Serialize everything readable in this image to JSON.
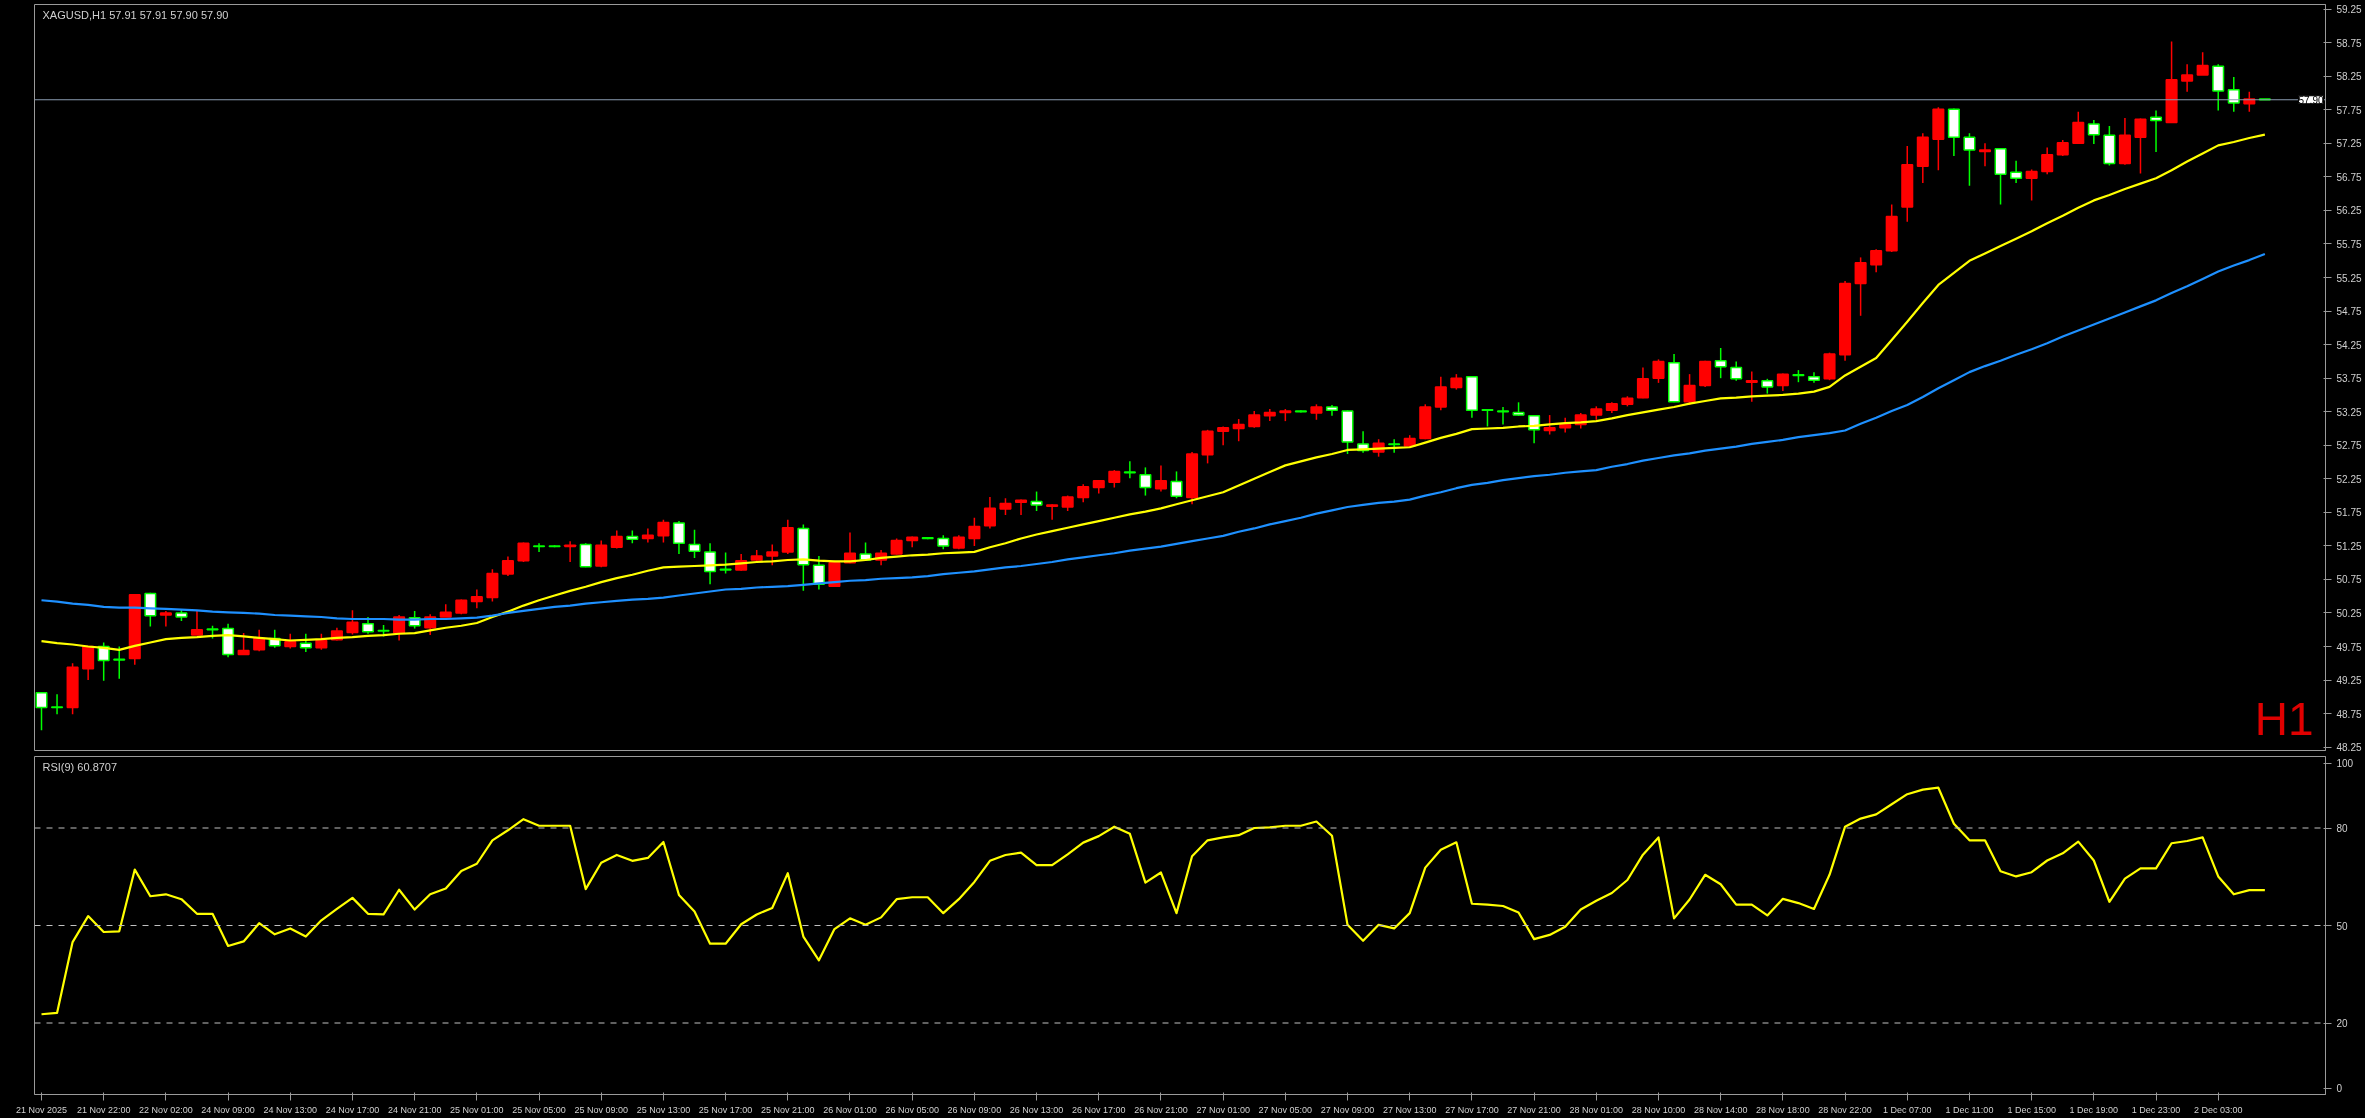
{
  "chart_data": [
    {
      "type": "candlestick",
      "title": "XAGUSD,H1  57.91 57.91 57.90 57.90",
      "categories": [
        null,
        null,
        null,
        null,
        null,
        null,
        null,
        null,
        null,
        null,
        null,
        null,
        null,
        null,
        null,
        null,
        null,
        null,
        null,
        null,
        null,
        null,
        null,
        null,
        null,
        null,
        null,
        null,
        null,
        null,
        null,
        null,
        null,
        null,
        null,
        null,
        null,
        null,
        null,
        null,
        null,
        null,
        null,
        null,
        null,
        null,
        null,
        null,
        null,
        null,
        null,
        null,
        null,
        null,
        null,
        null,
        null,
        null,
        null,
        null,
        null,
        null,
        null,
        null,
        null,
        null,
        null,
        null,
        null,
        null,
        null,
        null,
        null,
        null,
        null,
        null,
        null,
        null,
        null,
        null,
        null,
        null,
        null,
        null,
        null,
        null,
        null,
        null,
        null,
        null,
        null,
        null,
        null,
        null,
        null,
        null,
        null,
        null,
        null,
        null,
        null,
        null,
        null,
        null,
        null,
        null,
        null,
        null,
        null,
        null,
        null,
        null,
        null,
        null,
        null,
        null,
        null,
        null,
        null,
        null,
        null,
        null,
        null,
        null,
        null,
        null,
        null,
        null,
        null,
        null,
        null,
        null,
        null,
        null,
        null,
        null,
        null,
        null,
        null,
        null,
        null,
        null,
        null,
        null
      ],
      "ohlc": [
        [
          49.06,
          49.06,
          48.5,
          48.84
        ],
        [
          48.85,
          49.04,
          48.74,
          48.84
        ],
        [
          48.84,
          49.5,
          48.74,
          49.44
        ],
        [
          49.42,
          49.75,
          49.25,
          49.75
        ],
        [
          49.75,
          49.81,
          49.24,
          49.54
        ],
        [
          49.56,
          49.75,
          49.27,
          49.55
        ],
        [
          49.57,
          50.52,
          49.48,
          50.52
        ],
        [
          50.54,
          50.55,
          50.05,
          50.21
        ],
        [
          50.22,
          50.28,
          50.05,
          50.25
        ],
        [
          50.25,
          50.31,
          50.13,
          50.19
        ],
        [
          49.92,
          50.28,
          49.92,
          50.0
        ],
        [
          50.01,
          50.06,
          49.87,
          50.0
        ],
        [
          50.02,
          50.09,
          49.59,
          49.63
        ],
        [
          49.63,
          49.95,
          49.63,
          49.69
        ],
        [
          49.7,
          50.0,
          49.68,
          49.87
        ],
        [
          49.87,
          50.0,
          49.73,
          49.76
        ],
        [
          49.75,
          49.94,
          49.72,
          49.82
        ],
        [
          49.8,
          49.94,
          49.67,
          49.73
        ],
        [
          49.73,
          49.94,
          49.7,
          49.84
        ],
        [
          49.85,
          50.03,
          49.84,
          49.98
        ],
        [
          49.96,
          50.29,
          49.93,
          50.11
        ],
        [
          50.09,
          50.19,
          49.94,
          49.97
        ],
        [
          49.99,
          50.07,
          49.9,
          49.98
        ],
        [
          49.95,
          50.22,
          49.84,
          50.19
        ],
        [
          50.18,
          50.28,
          50.02,
          50.06
        ],
        [
          50.03,
          50.23,
          49.92,
          50.19
        ],
        [
          50.19,
          50.38,
          50.19,
          50.26
        ],
        [
          50.25,
          50.45,
          50.23,
          50.44
        ],
        [
          50.42,
          50.6,
          50.32,
          50.49
        ],
        [
          50.48,
          50.9,
          50.42,
          50.84
        ],
        [
          50.83,
          51.09,
          50.8,
          51.03
        ],
        [
          51.03,
          51.3,
          51.01,
          51.29
        ],
        [
          51.25,
          51.29,
          51.16,
          51.24
        ],
        [
          51.25,
          51.26,
          51.23,
          51.24
        ],
        [
          51.24,
          51.32,
          51.01,
          51.26
        ],
        [
          51.27,
          51.29,
          50.93,
          50.94
        ],
        [
          50.95,
          51.33,
          50.93,
          51.26
        ],
        [
          51.23,
          51.48,
          51.21,
          51.39
        ],
        [
          51.39,
          51.48,
          51.29,
          51.35
        ],
        [
          51.36,
          51.51,
          51.3,
          51.41
        ],
        [
          51.4,
          51.64,
          51.3,
          51.6
        ],
        [
          51.59,
          51.62,
          51.13,
          51.29
        ],
        [
          51.27,
          51.49,
          51.07,
          51.17
        ],
        [
          51.16,
          51.29,
          50.68,
          50.87
        ],
        [
          50.9,
          51.15,
          50.84,
          50.89
        ],
        [
          50.89,
          51.13,
          50.88,
          51.03
        ],
        [
          51.04,
          51.19,
          51.0,
          51.1
        ],
        [
          51.1,
          51.27,
          50.96,
          51.16
        ],
        [
          51.16,
          51.64,
          51.13,
          51.52
        ],
        [
          51.51,
          51.57,
          50.58,
          50.97
        ],
        [
          50.96,
          51.1,
          50.6,
          50.68
        ],
        [
          50.65,
          51.03,
          50.64,
          51.0
        ],
        [
          51.0,
          51.45,
          50.99,
          51.14
        ],
        [
          51.13,
          51.3,
          51.03,
          51.04
        ],
        [
          51.04,
          51.19,
          50.96,
          51.14
        ],
        [
          51.13,
          51.36,
          51.12,
          51.33
        ],
        [
          51.33,
          51.39,
          51.23,
          51.38
        ],
        [
          51.37,
          51.38,
          51.35,
          51.36
        ],
        [
          51.36,
          51.41,
          51.2,
          51.25
        ],
        [
          51.22,
          51.41,
          51.2,
          51.38
        ],
        [
          51.36,
          51.67,
          51.25,
          51.54
        ],
        [
          51.55,
          51.98,
          51.51,
          51.81
        ],
        [
          51.8,
          51.96,
          51.71,
          51.88
        ],
        [
          51.9,
          51.94,
          51.71,
          51.93
        ],
        [
          51.91,
          52.06,
          51.77,
          51.86
        ],
        [
          51.84,
          51.87,
          51.64,
          51.86
        ],
        [
          51.83,
          52.0,
          51.77,
          51.98
        ],
        [
          51.97,
          52.17,
          51.9,
          52.13
        ],
        [
          52.12,
          52.23,
          52.03,
          52.22
        ],
        [
          52.2,
          52.38,
          52.12,
          52.36
        ],
        [
          52.35,
          52.51,
          52.26,
          52.34
        ],
        [
          52.31,
          52.42,
          52.0,
          52.12
        ],
        [
          52.1,
          52.45,
          52.06,
          52.22
        ],
        [
          52.21,
          52.36,
          51.96,
          51.99
        ],
        [
          51.97,
          52.65,
          51.87,
          52.62
        ],
        [
          52.61,
          52.98,
          52.48,
          52.96
        ],
        [
          52.96,
          53.03,
          52.75,
          53.01
        ],
        [
          53.0,
          53.14,
          52.81,
          53.06
        ],
        [
          53.03,
          53.26,
          53.01,
          53.2
        ],
        [
          53.19,
          53.29,
          53.11,
          53.24
        ],
        [
          53.24,
          53.29,
          53.11,
          53.26
        ],
        [
          53.26,
          53.27,
          53.24,
          53.25
        ],
        [
          53.23,
          53.36,
          53.13,
          53.32
        ],
        [
          53.32,
          53.35,
          53.19,
          53.27
        ],
        [
          53.26,
          53.27,
          52.62,
          52.8
        ],
        [
          52.77,
          52.96,
          52.64,
          52.67
        ],
        [
          52.65,
          52.84,
          52.58,
          52.78
        ],
        [
          52.77,
          52.84,
          52.64,
          52.76
        ],
        [
          52.74,
          52.9,
          52.71,
          52.85
        ],
        [
          52.85,
          53.36,
          52.84,
          53.32
        ],
        [
          53.32,
          53.77,
          53.27,
          53.62
        ],
        [
          53.61,
          53.81,
          53.58,
          53.75
        ],
        [
          53.77,
          53.78,
          53.16,
          53.27
        ],
        [
          53.28,
          53.28,
          53.03,
          53.27
        ],
        [
          53.26,
          53.32,
          53.06,
          53.25
        ],
        [
          53.24,
          53.39,
          53.19,
          53.2
        ],
        [
          53.19,
          53.2,
          52.78,
          52.98
        ],
        [
          52.97,
          53.2,
          52.91,
          53.01
        ],
        [
          53.01,
          53.16,
          52.94,
          53.06
        ],
        [
          53.06,
          53.23,
          53.0,
          53.2
        ],
        [
          53.2,
          53.33,
          53.13,
          53.29
        ],
        [
          53.27,
          53.39,
          53.23,
          53.37
        ],
        [
          53.36,
          53.48,
          53.33,
          53.45
        ],
        [
          53.46,
          53.91,
          53.45,
          53.74
        ],
        [
          53.75,
          54.03,
          53.68,
          54.0
        ],
        [
          53.98,
          54.11,
          53.39,
          53.4
        ],
        [
          53.4,
          53.81,
          53.35,
          53.64
        ],
        [
          53.64,
          54.01,
          53.62,
          54.0
        ],
        [
          54.01,
          54.2,
          53.75,
          53.92
        ],
        [
          53.91,
          54.0,
          53.71,
          53.74
        ],
        [
          53.69,
          53.85,
          53.4,
          53.71
        ],
        [
          53.71,
          53.74,
          53.52,
          53.62
        ],
        [
          53.64,
          53.82,
          53.56,
          53.81
        ],
        [
          53.8,
          53.87,
          53.69,
          53.79
        ],
        [
          53.77,
          53.84,
          53.68,
          53.72
        ],
        [
          53.74,
          54.13,
          53.72,
          54.11
        ],
        [
          54.1,
          55.2,
          54.01,
          55.16
        ],
        [
          55.16,
          55.55,
          54.68,
          55.47
        ],
        [
          55.44,
          55.67,
          55.33,
          55.65
        ],
        [
          55.65,
          56.34,
          55.63,
          56.16
        ],
        [
          56.3,
          57.21,
          56.08,
          56.93
        ],
        [
          56.91,
          57.4,
          56.66,
          57.34
        ],
        [
          57.31,
          57.79,
          56.85,
          57.76
        ],
        [
          57.76,
          57.77,
          57.06,
          57.34
        ],
        [
          57.34,
          57.4,
          56.62,
          57.15
        ],
        [
          57.13,
          57.25,
          56.91,
          57.15
        ],
        [
          57.17,
          57.18,
          56.34,
          56.79
        ],
        [
          56.82,
          56.99,
          56.66,
          56.73
        ],
        [
          56.73,
          56.86,
          56.4,
          56.83
        ],
        [
          56.83,
          57.19,
          56.79,
          57.08
        ],
        [
          57.08,
          57.3,
          57.06,
          57.26
        ],
        [
          57.25,
          57.72,
          57.24,
          57.56
        ],
        [
          57.54,
          57.6,
          57.24,
          57.38
        ],
        [
          57.37,
          57.51,
          56.92,
          56.95
        ],
        [
          56.95,
          57.63,
          56.93,
          57.37
        ],
        [
          57.34,
          57.62,
          56.8,
          57.61
        ],
        [
          57.64,
          57.74,
          57.12,
          57.59
        ],
        [
          57.56,
          58.77,
          57.56,
          58.2
        ],
        [
          58.18,
          58.43,
          58.02,
          58.27
        ],
        [
          58.27,
          58.61,
          58.27,
          58.41
        ],
        [
          58.4,
          58.43,
          57.74,
          58.03
        ],
        [
          58.05,
          58.24,
          57.72,
          57.85
        ],
        [
          57.84,
          58.02,
          57.72,
          57.91
        ],
        [
          57.91,
          57.91,
          57.9,
          57.9
        ]
      ],
      "colors": [
        "#ffffff",
        "#ffffff",
        "#ff0000",
        "#ff0000",
        "#ffffff",
        "#ffffff",
        "#ff0000",
        "#ffffff",
        "#ff0000",
        "#ffffff",
        "#ff0000",
        "#ffffff",
        "#ffffff",
        "#ff0000",
        "#ff0000",
        "#ffffff",
        "#ff0000",
        "#ffffff",
        "#ff0000",
        "#ff0000",
        "#ff0000",
        "#ffffff",
        "#ffffff",
        "#ff0000",
        "#ffffff",
        "#ff0000",
        "#ff0000",
        "#ff0000",
        "#ff0000",
        "#ff0000",
        "#ff0000",
        "#ff0000",
        "#ffffff",
        "#ffffff",
        "#ff0000",
        "#ffffff",
        "#ff0000",
        "#ff0000",
        "#ffffff",
        "#ff0000",
        "#ff0000",
        "#ffffff",
        "#ffffff",
        "#ffffff",
        "#ffffff",
        "#ff0000",
        "#ff0000",
        "#ff0000",
        "#ff0000",
        "#ffffff",
        "#ffffff",
        "#ff0000",
        "#ff0000",
        "#ffffff",
        "#ff0000",
        "#ff0000",
        "#ff0000",
        "#ffffff",
        "#ffffff",
        "#ff0000",
        "#ff0000",
        "#ff0000",
        "#ff0000",
        "#ff0000",
        "#ffffff",
        "#ff0000",
        "#ff0000",
        "#ff0000",
        "#ff0000",
        "#ff0000",
        "#ffffff",
        "#ffffff",
        "#ff0000",
        "#ffffff",
        "#ff0000",
        "#ff0000",
        "#ff0000",
        "#ff0000",
        "#ff0000",
        "#ff0000",
        "#ff0000",
        "#ffffff",
        "#ff0000",
        "#ffffff",
        "#ffffff",
        "#ffffff",
        "#ff0000",
        "#ffffff",
        "#ff0000",
        "#ff0000",
        "#ff0000",
        "#ff0000",
        "#ffffff",
        "#ffffff",
        "#ffffff",
        "#ffffff",
        "#ffffff",
        "#ff0000",
        "#ff0000",
        "#ff0000",
        "#ff0000",
        "#ff0000",
        "#ff0000",
        "#ff0000",
        "#ff0000",
        "#ffffff",
        "#ff0000",
        "#ff0000",
        "#ffffff",
        "#ffffff",
        "#ff0000",
        "#ffffff",
        "#ff0000",
        "#ffffff",
        "#ffffff",
        "#ff0000",
        "#ff0000",
        "#ff0000",
        "#ff0000",
        "#ff0000",
        "#ff0000",
        "#ff0000",
        "#ff0000",
        "#ffffff",
        "#ffffff",
        "#ff0000",
        "#ffffff",
        "#ffffff",
        "#ff0000",
        "#ff0000",
        "#ff0000",
        "#ff0000",
        "#ffffff",
        "#ffffff",
        "#ff0000",
        "#ff0000",
        "#ffffff",
        "#ff0000",
        "#ff0000",
        "#ff0000",
        "#ffffff",
        "#ffffff",
        "#ff0000",
        "#ffffff"
      ],
      "series": [
        {
          "type": "line",
          "color": "#ffff00",
          "values": [
            49.83,
            49.8,
            49.78,
            49.75,
            49.73,
            49.7,
            49.76,
            49.81,
            49.86,
            49.88,
            49.89,
            49.91,
            49.92,
            49.9,
            49.88,
            49.86,
            49.84,
            49.85,
            49.86,
            49.88,
            49.89,
            49.91,
            49.92,
            49.94,
            49.95,
            49.99,
            50.03,
            50.06,
            50.1,
            50.19,
            50.27,
            50.36,
            50.44,
            50.51,
            50.58,
            50.64,
            50.71,
            50.77,
            50.82,
            50.88,
            50.93,
            50.94,
            50.95,
            50.96,
            50.97,
            50.99,
            51.01,
            51.02,
            51.04,
            51.05,
            51.03,
            51.02,
            51.02,
            51.04,
            51.07,
            51.09,
            51.11,
            51.12,
            51.14,
            51.15,
            51.16,
            51.23,
            51.29,
            51.36,
            51.42,
            51.47,
            51.52,
            51.57,
            51.62,
            51.67,
            51.72,
            51.76,
            51.81,
            51.87,
            51.93,
            51.99,
            52.05,
            52.15,
            52.25,
            52.35,
            52.45,
            52.51,
            52.57,
            52.62,
            52.68,
            52.69,
            52.7,
            52.71,
            52.72,
            52.79,
            52.86,
            52.92,
            52.99,
            53.0,
            53.01,
            53.03,
            53.04,
            53.06,
            53.08,
            53.09,
            53.11,
            53.15,
            53.2,
            53.24,
            53.28,
            53.32,
            53.37,
            53.41,
            53.45,
            53.46,
            53.48,
            53.49,
            53.5,
            53.52,
            53.55,
            53.62,
            53.79,
            53.92,
            54.05,
            54.32,
            54.59,
            54.87,
            55.14,
            55.32,
            55.5,
            55.61,
            55.72,
            55.83,
            55.94,
            56.06,
            56.17,
            56.29,
            56.4,
            56.48,
            56.57,
            56.65,
            56.73,
            56.85,
            56.98,
            57.1,
            57.22,
            57.27,
            57.33,
            57.38
          ]
        },
        {
          "type": "line",
          "color": "#1e90ff",
          "values": [
            50.44,
            50.42,
            50.39,
            50.37,
            50.34,
            50.33,
            50.33,
            50.32,
            50.31,
            50.3,
            50.29,
            50.27,
            50.26,
            50.25,
            50.24,
            50.22,
            50.21,
            50.2,
            50.19,
            50.17,
            50.16,
            50.16,
            50.16,
            50.15,
            50.15,
            50.16,
            50.16,
            50.17,
            50.18,
            50.21,
            50.25,
            50.28,
            50.31,
            50.34,
            50.36,
            50.39,
            50.41,
            50.43,
            50.45,
            50.46,
            50.48,
            50.51,
            50.54,
            50.57,
            50.6,
            50.61,
            50.63,
            50.64,
            50.65,
            50.67,
            50.69,
            50.71,
            50.73,
            50.74,
            50.76,
            50.77,
            50.78,
            50.8,
            50.83,
            50.85,
            50.87,
            50.9,
            50.93,
            50.95,
            50.98,
            51.01,
            51.05,
            51.08,
            51.11,
            51.14,
            51.18,
            51.21,
            51.24,
            51.28,
            51.32,
            51.36,
            51.4,
            51.46,
            51.51,
            51.57,
            51.62,
            51.67,
            51.73,
            51.78,
            51.83,
            51.86,
            51.89,
            51.91,
            51.94,
            52.0,
            52.05,
            52.11,
            52.16,
            52.19,
            52.23,
            52.26,
            52.29,
            52.31,
            52.34,
            52.36,
            52.38,
            52.43,
            52.47,
            52.52,
            52.56,
            52.6,
            52.63,
            52.67,
            52.7,
            52.73,
            52.77,
            52.8,
            52.83,
            52.87,
            52.9,
            52.93,
            52.97,
            53.07,
            53.16,
            53.26,
            53.35,
            53.47,
            53.6,
            53.72,
            53.84,
            53.93,
            54.01,
            54.1,
            54.18,
            54.27,
            54.37,
            54.46,
            54.55,
            54.64,
            54.73,
            54.82,
            54.91,
            55.02,
            55.12,
            55.23,
            55.34,
            55.43,
            55.51,
            55.6
          ]
        }
      ],
      "ylim": [
        48.2,
        59.32
      ],
      "yticks": [
        48.25,
        48.75,
        49.25,
        49.75,
        50.25,
        50.75,
        51.25,
        51.75,
        52.25,
        52.75,
        53.25,
        53.75,
        54.25,
        54.75,
        55.25,
        55.75,
        56.25,
        56.75,
        57.25,
        57.75,
        58.25,
        58.75,
        59.25
      ],
      "ref_lines": [
        {
          "axis": "y",
          "value": 57.9,
          "label": "57.90",
          "color": "#8a9bb0",
          "line_style": "solid"
        }
      ],
      "annotations": [
        "H1"
      ],
      "tick_labels": "y",
      "grid": false
    },
    {
      "type": "line",
      "title": "RSI(9) 60.8707",
      "categories": [
        "21 Nov 2025",
        null,
        null,
        null,
        "21 Nov 22:00",
        null,
        null,
        null,
        "22 Nov 02:00",
        null,
        null,
        null,
        "24 Nov 09:00",
        null,
        null,
        null,
        "24 Nov 13:00",
        null,
        null,
        null,
        "24 Nov 17:00",
        null,
        null,
        null,
        "24 Nov 21:00",
        null,
        null,
        null,
        "25 Nov 01:00",
        null,
        null,
        null,
        "25 Nov 05:00",
        null,
        null,
        null,
        "25 Nov 09:00",
        null,
        null,
        null,
        "25 Nov 13:00",
        null,
        null,
        null,
        "25 Nov 17:00",
        null,
        null,
        null,
        "25 Nov 21:00",
        null,
        null,
        null,
        "26 Nov 01:00",
        null,
        null,
        null,
        "26 Nov 05:00",
        null,
        null,
        null,
        "26 Nov 09:00",
        null,
        null,
        null,
        "26 Nov 13:00",
        null,
        null,
        null,
        "26 Nov 17:00",
        null,
        null,
        null,
        "26 Nov 21:00",
        null,
        null,
        null,
        "27 Nov 01:00",
        null,
        null,
        null,
        "27 Nov 05:00",
        null,
        null,
        null,
        "27 Nov 09:00",
        null,
        null,
        null,
        "27 Nov 13:00",
        null,
        null,
        null,
        "27 Nov 17:00",
        null,
        null,
        null,
        "27 Nov 21:00",
        null,
        null,
        null,
        "28 Nov 01:00",
        null,
        null,
        null,
        "28 Nov 10:00",
        null,
        null,
        null,
        "28 Nov 14:00",
        null,
        null,
        null,
        "28 Nov 18:00",
        null,
        null,
        null,
        "28 Nov 22:00",
        null,
        null,
        null,
        "1 Dec 07:00",
        null,
        null,
        null,
        "1 Dec 11:00",
        null,
        null,
        null,
        "1 Dec 15:00",
        null,
        null,
        null,
        "1 Dec 19:00",
        null,
        null,
        null,
        "1 Dec 23:00",
        null,
        null,
        null,
        "2 Dec 03:00",
        null,
        null,
        null
      ],
      "series": [
        {
          "type": "line",
          "color": "#ffff00",
          "values": [
            22.7,
            23.1,
            44.9,
            52.9,
            48.0,
            48.2,
            67.2,
            59.0,
            59.6,
            58.1,
            53.6,
            53.6,
            43.7,
            45.1,
            50.7,
            47.3,
            49.1,
            46.6,
            51.6,
            55.1,
            58.5,
            53.6,
            53.4,
            61.0,
            54.9,
            59.6,
            61.4,
            66.8,
            69.0,
            76.2,
            79.3,
            82.7,
            80.7,
            80.7,
            80.7,
            61.2,
            69.3,
            71.7,
            69.9,
            70.8,
            75.7,
            59.4,
            54.3,
            44.4,
            44.4,
            50.4,
            53.4,
            55.4,
            66.1,
            46.6,
            39.3,
            48.9,
            52.2,
            50.2,
            52.5,
            58.1,
            58.7,
            58.7,
            53.8,
            58.1,
            63.4,
            69.9,
            71.7,
            72.4,
            68.6,
            68.6,
            71.9,
            75.5,
            77.5,
            80.4,
            78.2,
            63.2,
            66.3,
            53.8,
            71.3,
            76.2,
            77.1,
            77.8,
            80.0,
            80.2,
            80.7,
            80.7,
            82.0,
            77.6,
            50.2,
            45.3,
            50.2,
            49.1,
            53.8,
            67.8,
            73.3,
            75.6,
            56.7,
            56.4,
            56.0,
            54.0,
            45.8,
            47.1,
            49.6,
            54.9,
            57.6,
            60.0,
            64.0,
            71.8,
            77.1,
            52.2,
            58.0,
            65.6,
            62.7,
            56.4,
            56.4,
            53.1,
            58.2,
            56.9,
            55.1,
            65.6,
            80.4,
            82.9,
            84.2,
            87.3,
            90.4,
            91.8,
            92.4,
            81.3,
            76.2,
            76.2,
            66.7,
            65.1,
            66.4,
            70.0,
            72.2,
            75.8,
            70.0,
            57.3,
            64.4,
            67.6,
            67.6,
            75.3,
            76.0,
            77.1,
            65.1,
            59.6,
            60.9,
            60.9
          ]
        }
      ],
      "ylim": [
        -2,
        102
      ],
      "yticks": [
        0,
        20,
        50,
        80,
        100
      ],
      "ref_lines": [
        {
          "axis": "y",
          "value": 80,
          "color": "#c0c0c0",
          "line_style": "dashed"
        },
        {
          "axis": "y",
          "value": 50,
          "color": "#c0c0c0",
          "line_style": "dashed"
        },
        {
          "axis": "y",
          "value": 20,
          "color": "#c0c0c0",
          "line_style": "dashed"
        }
      ],
      "grid": false
    }
  ]
}
